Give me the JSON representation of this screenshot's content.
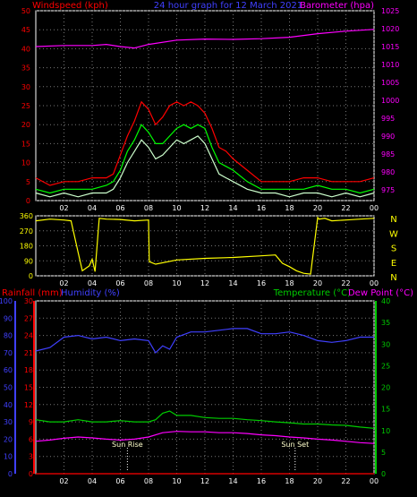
{
  "header": {
    "left_label": "Windspeed (kph)",
    "center_label": "24 hour graph for 12 March 2021",
    "right_label": "Barometer (hpa)"
  },
  "colors": {
    "red": "#ff0000",
    "green": "#00ff00",
    "lightgreen": "#ccffcc",
    "magenta": "#ff00ff",
    "blue": "#4040ff",
    "yellow": "#ffff00",
    "lime": "#00cc00",
    "plot_bg": "#000000"
  },
  "chart_data": [
    {
      "type": "line",
      "name": "wind-barometer",
      "x_ticks": [
        "02",
        "04",
        "06",
        "08",
        "10",
        "12",
        "14",
        "16",
        "18",
        "20",
        "22",
        "00"
      ],
      "x_range_hours": [
        0,
        24
      ],
      "left_axis": {
        "label": "Windspeed (kph)",
        "ylim": [
          0,
          50
        ],
        "ticks": [
          0,
          5,
          10,
          15,
          20,
          25,
          30,
          35,
          40,
          45,
          50
        ]
      },
      "right_axis": {
        "label": "Barometer (hpa)",
        "ylim": [
          972,
          1025
        ],
        "ticks": [
          975,
          980,
          985,
          990,
          995,
          1000,
          1005,
          1010,
          1015,
          1020,
          1025
        ]
      },
      "series": [
        {
          "axis": "right",
          "color": "#ff00ff",
          "x": [
            0,
            2,
            4,
            5,
            6,
            7,
            8,
            10,
            12,
            14,
            16,
            18,
            20,
            22,
            24
          ],
          "y": [
            1015,
            1015.3,
            1015.3,
            1015.6,
            1015.0,
            1014.6,
            1015.6,
            1016.8,
            1017.1,
            1017.0,
            1017.2,
            1017.6,
            1018.6,
            1019.3,
            1019.8
          ]
        },
        {
          "axis": "left",
          "color": "#ff0000",
          "x": [
            0,
            1,
            2,
            3,
            4,
            5,
            5.5,
            6,
            6.5,
            7,
            7.5,
            8,
            8.5,
            9,
            9.5,
            10,
            10.5,
            11,
            11.5,
            12,
            12.5,
            13,
            13.5,
            14,
            15,
            16,
            17,
            18,
            19,
            20,
            21,
            22,
            23,
            24
          ],
          "y": [
            6,
            4,
            5,
            5,
            6,
            6,
            7,
            12,
            17,
            21,
            26,
            24,
            20,
            22,
            25,
            26,
            25,
            26,
            25,
            23,
            19,
            14,
            13,
            11,
            8,
            5,
            5,
            5,
            6,
            6,
            5,
            5,
            5,
            6
          ]
        },
        {
          "axis": "left",
          "color": "#00ff00",
          "x": [
            0,
            1,
            2,
            3,
            4,
            5,
            5.5,
            6,
            6.5,
            7,
            7.5,
            8,
            8.5,
            9,
            9.5,
            10,
            10.5,
            11,
            11.5,
            12,
            12.5,
            13,
            13.5,
            14,
            15,
            16,
            17,
            18,
            19,
            20,
            21,
            22,
            23,
            24
          ],
          "y": [
            3,
            2,
            3,
            3,
            3,
            4,
            5,
            8,
            13,
            16,
            20,
            18,
            15,
            15,
            17,
            19,
            20,
            19,
            20,
            19,
            14,
            10,
            9,
            8,
            5,
            3,
            3,
            3,
            3,
            4,
            3,
            3,
            2,
            3
          ]
        },
        {
          "axis": "left",
          "color": "#ccffcc",
          "x": [
            0,
            1,
            2,
            3,
            4,
            5,
            5.5,
            6,
            6.5,
            7,
            7.5,
            8,
            8.5,
            9,
            9.5,
            10,
            10.5,
            11,
            11.5,
            12,
            12.5,
            13,
            13.5,
            14,
            15,
            16,
            17,
            18,
            19,
            20,
            21,
            22,
            23,
            24
          ],
          "y": [
            2,
            1,
            2,
            1,
            2,
            2,
            3,
            6,
            10,
            13,
            16,
            14,
            11,
            12,
            14,
            16,
            15,
            16,
            17,
            15,
            11,
            7,
            6,
            5,
            3,
            2,
            2,
            1,
            2,
            2,
            1,
            2,
            1,
            2
          ]
        }
      ]
    },
    {
      "type": "line",
      "name": "wind-direction",
      "x_ticks": [
        "02",
        "04",
        "06",
        "08",
        "10",
        "12",
        "14",
        "16",
        "18",
        "20",
        "22",
        "00"
      ],
      "x_range_hours": [
        0,
        24
      ],
      "left_axis": {
        "ylim": [
          0,
          360
        ],
        "ticks": [
          0,
          90,
          180,
          270,
          360
        ]
      },
      "right_axis": {
        "labels": [
          "N",
          "W",
          "S",
          "E",
          "N"
        ]
      },
      "series": [
        {
          "color": "#ffff00",
          "x": [
            0,
            1,
            2,
            2.5,
            3,
            3.3,
            3.8,
            4,
            4.2,
            4.5,
            5,
            6,
            7,
            8,
            8.05,
            8.5,
            10,
            12,
            14,
            16,
            17,
            17.5,
            18,
            18.5,
            19,
            19.5,
            20,
            20.1,
            20.5,
            21,
            22,
            23,
            24
          ],
          "y": [
            330,
            340,
            335,
            330,
            140,
            30,
            60,
            100,
            25,
            345,
            340,
            338,
            330,
            335,
            85,
            70,
            95,
            105,
            110,
            120,
            125,
            75,
            55,
            30,
            15,
            10,
            350,
            340,
            345,
            330,
            335,
            340,
            345
          ]
        }
      ]
    },
    {
      "type": "line",
      "name": "rain-humidity-temperature",
      "x_ticks": [
        "02",
        "04",
        "06",
        "08",
        "10",
        "12",
        "14",
        "16",
        "18",
        "20",
        "22",
        "00"
      ],
      "x_range_hours": [
        0,
        24
      ],
      "rainfall_axis": {
        "label": "Rainfall (mm)",
        "ylim": [
          0,
          30
        ],
        "ticks": [
          0,
          3,
          6,
          9,
          12,
          15,
          18,
          21,
          24,
          27,
          30
        ]
      },
      "humidity_axis": {
        "label": "Humidity (%)",
        "ylim": [
          0,
          100
        ],
        "ticks": [
          0,
          10,
          20,
          30,
          40,
          50,
          60,
          70,
          80,
          90,
          100
        ]
      },
      "temperature_axis": {
        "label": "Temperature (°C)",
        "ylim": [
          0,
          40
        ],
        "ticks": [
          0,
          5,
          10,
          15,
          20,
          25,
          30,
          35,
          40
        ]
      },
      "dewpoint_label": "Dew Point (°C)",
      "annotations": [
        {
          "label": "Sun Rise",
          "x_hours": 6.5
        },
        {
          "label": "Sun Set",
          "x_hours": 18.4
        }
      ],
      "series": [
        {
          "axis": "humidity",
          "color": "#4040ff",
          "x": [
            0,
            1,
            2,
            3,
            4,
            5,
            6,
            7,
            8,
            8.5,
            9,
            9.5,
            10,
            11,
            12,
            13,
            14,
            15,
            16,
            17,
            18,
            19,
            20,
            21,
            22,
            23,
            24
          ],
          "y": [
            71,
            73,
            79,
            80,
            78,
            79,
            77,
            78,
            77,
            70,
            74,
            72,
            79,
            82,
            82,
            83,
            84,
            84,
            81,
            81,
            82,
            80,
            77,
            76,
            77,
            79,
            79
          ]
        },
        {
          "axis": "temperature",
          "color": "#00cc00",
          "x": [
            0,
            1,
            2,
            3,
            4,
            5,
            6,
            7,
            8,
            8.5,
            9,
            9.5,
            10,
            11,
            12,
            13,
            14,
            15,
            16,
            17,
            18,
            19,
            20,
            21,
            22,
            23,
            24
          ],
          "y": [
            12.5,
            12.0,
            12.0,
            12.5,
            12.0,
            12.0,
            12.3,
            12.0,
            12.0,
            12.5,
            14.0,
            14.5,
            13.5,
            13.5,
            13.0,
            12.8,
            12.8,
            12.5,
            12.3,
            12.0,
            11.8,
            11.5,
            11.5,
            11.3,
            11.2,
            10.8,
            10.5
          ]
        },
        {
          "axis": "temperature",
          "color": "#ff00ff",
          "x": [
            0,
            1,
            2,
            3,
            4,
            5,
            6,
            7,
            8,
            9,
            10,
            11,
            12,
            13,
            14,
            15,
            16,
            17,
            18,
            19,
            20,
            21,
            22,
            23,
            24
          ],
          "y": [
            7.5,
            7.8,
            8.2,
            8.5,
            8.3,
            8.0,
            7.8,
            8.0,
            8.5,
            9.5,
            9.8,
            9.7,
            9.7,
            9.5,
            9.5,
            9.3,
            9.0,
            8.8,
            8.5,
            8.3,
            8.0,
            7.8,
            7.5,
            7.2,
            7.0
          ]
        },
        {
          "axis": "rainfall",
          "color": "#ff0000",
          "x": [
            0,
            24
          ],
          "y": [
            0,
            0
          ]
        }
      ]
    }
  ]
}
